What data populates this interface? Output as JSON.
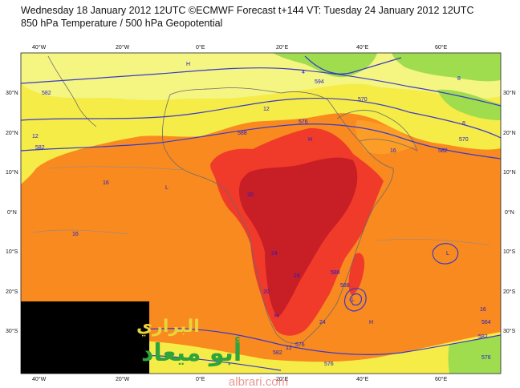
{
  "header": {
    "line1": "Wednesday 18 January 2012 12UTC ©ECMWF Forecast t+144 VT: Tuesday 24 January 2012 12UTC",
    "line2": "850 hPa Temperature / 500 hPa Geopotential"
  },
  "map": {
    "lon_labels": [
      "40°W",
      "20°W",
      "0°E",
      "20°E",
      "40°E",
      "60°E"
    ],
    "lat_labels": [
      "30°N",
      "20°N",
      "10°N",
      "0°N",
      "10°S",
      "20°S",
      "30°S"
    ],
    "temperature_labels": [
      "20",
      "24",
      "24",
      "20",
      "16",
      "16",
      "12",
      "16",
      "24",
      "12",
      "8",
      "4",
      "16",
      "8",
      "12"
    ],
    "geopotential_labels": [
      "594",
      "582",
      "576",
      "576",
      "582",
      "588",
      "570",
      "582",
      "576",
      "564",
      "582",
      "576",
      "570",
      "588",
      "588",
      "582"
    ],
    "pressure_markers": [
      "H",
      "L",
      "H",
      "L",
      "H",
      "H",
      "L"
    ],
    "colors": {
      "ocean_orange": "#f98a1f",
      "land_orange": "#fb9d27",
      "yellow": "#f5ec48",
      "light_yellow": "#f5f582",
      "green": "#9fdd4e",
      "red": "#f03a2a",
      "dark_red": "#c81e26",
      "contour_blue": "#3a3ac8"
    }
  },
  "watermark": {
    "arabic_line1": "البراري",
    "arabic_line2": "أبو ميعاد",
    "url": "albrari.com"
  }
}
